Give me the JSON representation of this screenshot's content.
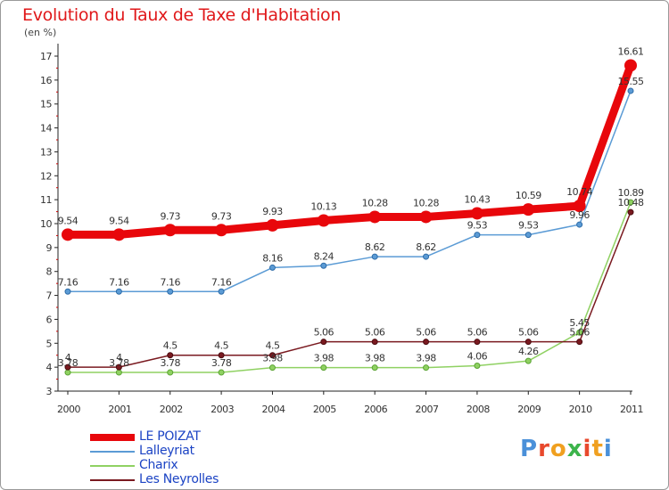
{
  "header": {
    "title": "Evolution du Taux de Taxe d'Habitation",
    "subtitle": "(en %)"
  },
  "brand": {
    "text": "Proxiti",
    "letter_colors": [
      "#4a90d9",
      "#e8492d",
      "#f0a020",
      "#3cb44b",
      "#e8492d",
      "#f0a020",
      "#4a90d9"
    ]
  },
  "chart_data": {
    "type": "line",
    "title": "Evolution du Taux de Taxe d'Habitation",
    "subtitle": "(en %)",
    "xlabel": "",
    "ylabel": "",
    "categories": [
      "2000",
      "2001",
      "2002",
      "2003",
      "2004",
      "2005",
      "2006",
      "2007",
      "2008",
      "2009",
      "2010",
      "2011"
    ],
    "ylim": [
      3,
      17
    ],
    "yticks": [
      3,
      4,
      5,
      6,
      7,
      8,
      9,
      10,
      11,
      12,
      13,
      14,
      15,
      16,
      17
    ],
    "grid": false,
    "legend_position": "bottom-left",
    "series": [
      {
        "name": "LE POIZAT",
        "color": "#e8070b",
        "values": [
          9.54,
          9.54,
          9.73,
          9.73,
          9.93,
          10.13,
          10.28,
          10.28,
          10.43,
          10.59,
          10.74,
          16.61
        ],
        "labels": [
          "9.54",
          "9.54",
          "9.73",
          "9.73",
          "9.93",
          "10.13",
          "10.28",
          "10.28",
          "10.43",
          "10.59",
          "10.74",
          "16.61"
        ]
      },
      {
        "name": "Lalleyriat",
        "color": "#5b9bd5",
        "values": [
          7.16,
          7.16,
          7.16,
          7.16,
          8.16,
          8.24,
          8.62,
          8.62,
          9.53,
          9.53,
          9.96,
          15.55
        ],
        "labels": [
          "7.16",
          "7.16",
          "7.16",
          "7.16",
          "8.16",
          "8.24",
          "8.62",
          "8.62",
          "9.53",
          "9.53",
          "9.96",
          "15.55"
        ]
      },
      {
        "name": "Charix",
        "color": "#8fd162",
        "values": [
          3.78,
          3.78,
          3.78,
          3.78,
          3.98,
          3.98,
          3.98,
          3.98,
          4.06,
          4.26,
          5.45,
          10.89
        ],
        "labels": [
          "3.78",
          "3.78",
          "3.78",
          "3.78",
          "3.98",
          "3.98",
          "3.98",
          "3.98",
          "4.06",
          "4.26",
          "5.45",
          "10.89"
        ]
      },
      {
        "name": "Les Neyrolles",
        "color": "#7a1a20",
        "values": [
          4,
          4,
          4.5,
          4.5,
          4.5,
          5.06,
          5.06,
          5.06,
          5.06,
          5.06,
          5.06,
          10.48
        ],
        "labels": [
          "4",
          "4",
          "4.5",
          "4.5",
          "4.5",
          "5.06",
          "5.06",
          "5.06",
          "5.06",
          "5.06",
          "5.06",
          "10.48"
        ]
      }
    ]
  }
}
